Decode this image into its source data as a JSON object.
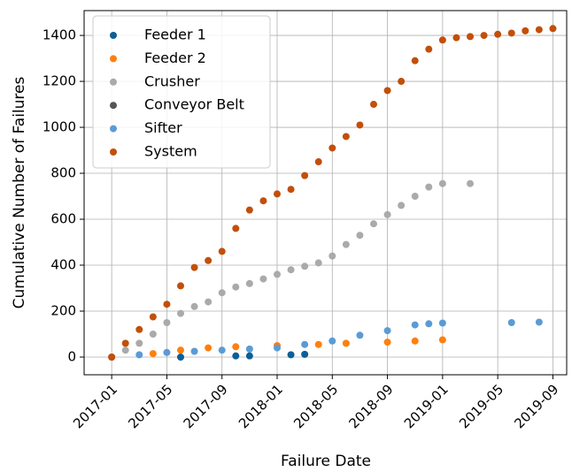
{
  "chart_data": {
    "type": "scatter",
    "xlabel": "Failure Date",
    "ylabel": "Cumulative Number of Failures",
    "xlim": [
      "2016-11",
      "2019-10"
    ],
    "xticks": [
      "2017-01",
      "2017-05",
      "2017-09",
      "2018-01",
      "2018-05",
      "2018-09",
      "2019-01",
      "2019-05",
      "2019-09"
    ],
    "ylim": [
      -77,
      1508
    ],
    "yticks": [
      0,
      200,
      400,
      600,
      800,
      1000,
      1200,
      1400
    ],
    "grid": true,
    "legend": "upper left",
    "series": [
      {
        "name": "Feeder 1",
        "color": "#0e5e96",
        "x": [
          "2017-06",
          "2017-10",
          "2017-11",
          "2018-02",
          "2018-03"
        ],
        "values": [
          0,
          5,
          5,
          10,
          12
        ]
      },
      {
        "name": "Feeder 2",
        "color": "#ff7f0e",
        "x": [
          "2017-01",
          "2017-04",
          "2017-06",
          "2017-08",
          "2017-10",
          "2018-01",
          "2018-04",
          "2018-06",
          "2018-09",
          "2018-11",
          "2019-01"
        ],
        "values": [
          0,
          15,
          30,
          40,
          45,
          50,
          55,
          60,
          65,
          70,
          75
        ]
      },
      {
        "name": "Crusher",
        "color": "#aaaaaa",
        "x": [
          "2017-01",
          "2017-02",
          "2017-03",
          "2017-04",
          "2017-05",
          "2017-06",
          "2017-07",
          "2017-08",
          "2017-09",
          "2017-10",
          "2017-11",
          "2017-12",
          "2018-01",
          "2018-02",
          "2018-03",
          "2018-04",
          "2018-05",
          "2018-06",
          "2018-07",
          "2018-08",
          "2018-09",
          "2018-10",
          "2018-11",
          "2018-12",
          "2019-01",
          "2019-03"
        ],
        "values": [
          0,
          30,
          60,
          100,
          150,
          190,
          220,
          240,
          280,
          305,
          320,
          340,
          360,
          380,
          395,
          410,
          440,
          490,
          530,
          580,
          620,
          660,
          700,
          740,
          755,
          755
        ]
      },
      {
        "name": "Conveyor Belt",
        "color": "#555555",
        "x": [],
        "values": []
      },
      {
        "name": "Sifter",
        "color": "#5b9bd5",
        "x": [
          "2017-01",
          "2017-03",
          "2017-05",
          "2017-07",
          "2017-09",
          "2017-11",
          "2018-01",
          "2018-03",
          "2018-05",
          "2018-07",
          "2018-09",
          "2018-11",
          "2018-12",
          "2019-01",
          "2019-06",
          "2019-08"
        ],
        "values": [
          0,
          10,
          20,
          25,
          30,
          35,
          40,
          55,
          70,
          95,
          115,
          140,
          145,
          148,
          150,
          152
        ]
      },
      {
        "name": "System",
        "color": "#c24f0a",
        "x": [
          "2017-01",
          "2017-02",
          "2017-03",
          "2017-04",
          "2017-05",
          "2017-06",
          "2017-07",
          "2017-08",
          "2017-09",
          "2017-10",
          "2017-11",
          "2017-12",
          "2018-01",
          "2018-02",
          "2018-03",
          "2018-04",
          "2018-05",
          "2018-06",
          "2018-07",
          "2018-08",
          "2018-09",
          "2018-10",
          "2018-11",
          "2018-12",
          "2019-01",
          "2019-02",
          "2019-03",
          "2019-04",
          "2019-05",
          "2019-06",
          "2019-07",
          "2019-08",
          "2019-09"
        ],
        "values": [
          0,
          60,
          120,
          175,
          230,
          310,
          390,
          420,
          460,
          560,
          640,
          680,
          710,
          730,
          790,
          850,
          910,
          960,
          1010,
          1100,
          1160,
          1200,
          1290,
          1340,
          1380,
          1390,
          1395,
          1400,
          1405,
          1410,
          1420,
          1425,
          1430
        ]
      }
    ]
  }
}
